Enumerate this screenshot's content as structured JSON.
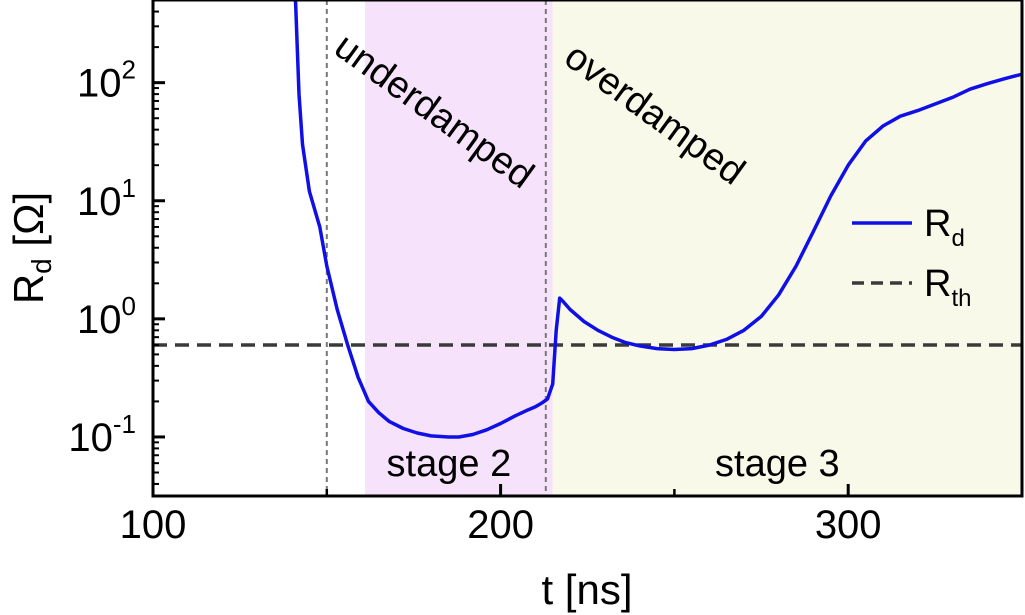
{
  "chart_data": {
    "type": "line",
    "xlabel": "t [ns]",
    "ylabel": {
      "main": "R",
      "sub": "d",
      "unit": " [Ω]"
    },
    "xlim": [
      100,
      350
    ],
    "ylim_log10": [
      -1.5,
      2.7
    ],
    "yscale": "log",
    "grid": false,
    "legend_position": "right",
    "x_ticks": [
      {
        "value": 100,
        "label": "100"
      },
      {
        "value": 200,
        "label": "200"
      },
      {
        "value": 300,
        "label": "300"
      }
    ],
    "y_ticks": [
      {
        "exp": -1,
        "base": "10",
        "sup": "-1"
      },
      {
        "exp": 0,
        "base": "10",
        "sup": "0"
      },
      {
        "exp": 1,
        "base": "10",
        "sup": "1"
      },
      {
        "exp": 2,
        "base": "10",
        "sup": "2"
      }
    ],
    "series": [
      {
        "name": "R_d",
        "legend_main": "R",
        "legend_sub": "d",
        "color": "#1010e6",
        "style": "solid",
        "x": [
          141,
          142,
          143,
          145,
          148,
          150,
          153,
          156,
          159,
          162,
          165,
          168,
          172,
          176,
          180,
          185,
          188,
          192,
          196,
          200,
          204,
          208,
          210,
          212,
          213.5,
          215,
          216,
          217,
          218,
          220,
          224,
          228,
          232,
          236,
          240,
          245,
          250,
          255,
          260,
          265,
          270,
          275,
          280,
          285,
          290,
          295,
          300,
          305,
          310,
          315,
          320,
          325,
          330,
          335,
          340,
          345,
          350
        ],
        "y": [
          600,
          80,
          30,
          12,
          6,
          2.8,
          1.2,
          0.6,
          0.32,
          0.2,
          0.16,
          0.135,
          0.118,
          0.108,
          0.102,
          0.1,
          0.1,
          0.105,
          0.115,
          0.13,
          0.15,
          0.17,
          0.18,
          0.195,
          0.21,
          0.28,
          0.8,
          1.5,
          1.4,
          1.2,
          0.95,
          0.8,
          0.7,
          0.63,
          0.59,
          0.56,
          0.55,
          0.56,
          0.6,
          0.67,
          0.8,
          1.05,
          1.6,
          2.8,
          5.5,
          11,
          20,
          32,
          43,
          52,
          58,
          66,
          75,
          88,
          98,
          108,
          118
        ]
      },
      {
        "name": "R_th",
        "legend_main": "R",
        "legend_sub": "th",
        "color": "#3a3a3a",
        "style": "dashed",
        "x": [
          100,
          350
        ],
        "y": [
          0.6,
          0.6
        ]
      }
    ],
    "regions": [
      {
        "x0": 161,
        "x1": 215,
        "color": "#f6e3fb",
        "label": "stage 2"
      },
      {
        "x0": 215,
        "x1": 350,
        "color": "#f9f9e9",
        "label": "stage 3"
      }
    ],
    "vlines": [
      150,
      213
    ],
    "annotations": [
      "underdamped",
      "overdamped"
    ]
  }
}
